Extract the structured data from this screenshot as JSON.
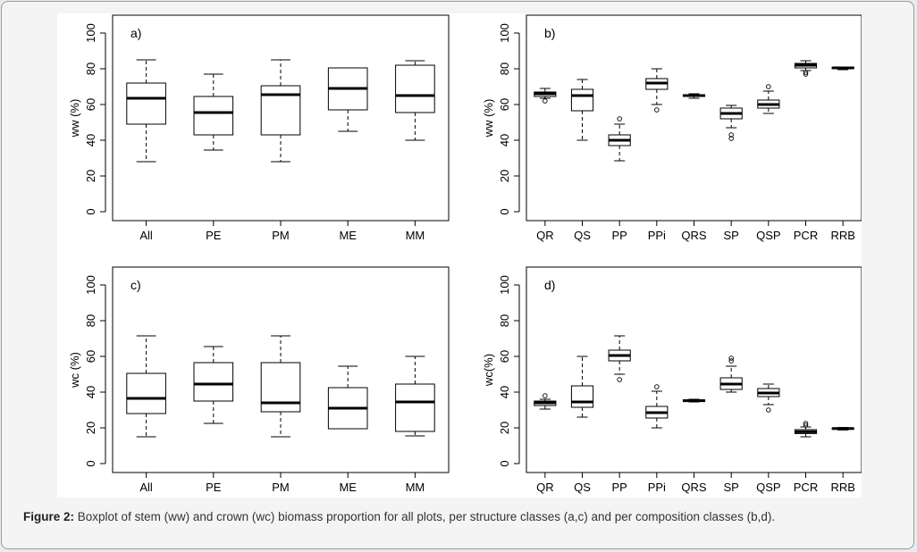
{
  "caption": {
    "label": "Figure 2:",
    "text": "Boxplot of stem (ww) and crown (wc) biomass proportion for all plots, per structure classes (a,c) and per composition classes (b,d)."
  },
  "chart_data": [
    {
      "panel": "a)",
      "type": "boxplot",
      "ylabel": "ww (%)",
      "ylim": [
        0,
        100
      ],
      "yticks": [
        "0",
        "20",
        "40",
        "60",
        "80",
        "100"
      ],
      "categories": [
        "All",
        "PE",
        "PM",
        "ME",
        "MM"
      ],
      "boxes": [
        {
          "min": 28,
          "q1": 49,
          "median": 63.5,
          "q3": 72,
          "max": 85,
          "outliers": []
        },
        {
          "min": 34.5,
          "q1": 43,
          "median": 55.5,
          "q3": 64.5,
          "max": 77,
          "outliers": []
        },
        {
          "min": 28,
          "q1": 43,
          "median": 65.5,
          "q3": 70.5,
          "max": 85,
          "outliers": []
        },
        {
          "min": 45,
          "q1": 57,
          "median": 69,
          "q3": 80.5,
          "max": 80.5,
          "outliers": []
        },
        {
          "min": 40,
          "q1": 55.5,
          "median": 65,
          "q3": 82,
          "max": 84.5,
          "outliers": []
        }
      ]
    },
    {
      "panel": "b)",
      "type": "boxplot",
      "ylabel": "ww (%)",
      "ylim": [
        0,
        100
      ],
      "yticks": [
        "0",
        "20",
        "40",
        "60",
        "80",
        "100"
      ],
      "categories": [
        "QR",
        "QS",
        "PP",
        "PPi",
        "QRS",
        "SP",
        "QSP",
        "PCR",
        "RRB"
      ],
      "boxes": [
        {
          "min": 63.5,
          "q1": 64.5,
          "median": 66,
          "q3": 67,
          "max": 69,
          "outliers": [
            62
          ]
        },
        {
          "min": 40,
          "q1": 56.5,
          "median": 65,
          "q3": 68.5,
          "max": 74,
          "outliers": []
        },
        {
          "min": 28.5,
          "q1": 37,
          "median": 40,
          "q3": 43,
          "max": 49,
          "outliers": [
            52
          ]
        },
        {
          "min": 60,
          "q1": 68.5,
          "median": 72,
          "q3": 74.5,
          "max": 80,
          "outliers": [
            57
          ]
        },
        {
          "min": 63.5,
          "q1": 64.5,
          "median": 65,
          "q3": 65.5,
          "max": 66,
          "outliers": []
        },
        {
          "min": 47,
          "q1": 52,
          "median": 55,
          "q3": 58,
          "max": 59.5,
          "outliers": [
            43,
            41
          ]
        },
        {
          "min": 55,
          "q1": 58,
          "median": 60,
          "q3": 62.5,
          "max": 67.5,
          "outliers": [
            70
          ]
        },
        {
          "min": 79,
          "q1": 80.5,
          "median": 82,
          "q3": 83,
          "max": 84.5,
          "outliers": [
            78,
            77
          ]
        },
        {
          "min": 79.5,
          "q1": 80,
          "median": 80.5,
          "q3": 81,
          "max": 81,
          "outliers": []
        }
      ]
    },
    {
      "panel": "c)",
      "type": "boxplot",
      "ylabel": "wc (%)",
      "ylim": [
        0,
        100
      ],
      "yticks": [
        "0",
        "20",
        "40",
        "60",
        "80",
        "100"
      ],
      "categories": [
        "All",
        "PE",
        "PM",
        "ME",
        "MM"
      ],
      "boxes": [
        {
          "min": 15,
          "q1": 28,
          "median": 36.5,
          "q3": 50.5,
          "max": 71.5,
          "outliers": []
        },
        {
          "min": 22.5,
          "q1": 35,
          "median": 44.5,
          "q3": 56.5,
          "max": 65.5,
          "outliers": []
        },
        {
          "min": 15,
          "q1": 29,
          "median": 34,
          "q3": 56.5,
          "max": 71.5,
          "outliers": []
        },
        {
          "min": 19.5,
          "q1": 19.5,
          "median": 31,
          "q3": 42.5,
          "max": 54.5,
          "outliers": []
        },
        {
          "min": 15.5,
          "q1": 18,
          "median": 34.5,
          "q3": 44.5,
          "max": 60,
          "outliers": []
        }
      ]
    },
    {
      "panel": "d)",
      "type": "boxplot",
      "ylabel": "wc(%)",
      "ylim": [
        0,
        100
      ],
      "yticks": [
        "0",
        "20",
        "40",
        "60",
        "80",
        "100"
      ],
      "categories": [
        "QR",
        "QS",
        "PP",
        "PPi",
        "QRS",
        "SP",
        "QSP",
        "PCR",
        "RRB"
      ],
      "boxes": [
        {
          "min": 30.5,
          "q1": 32.5,
          "median": 34,
          "q3": 35,
          "max": 36,
          "outliers": [
            38
          ]
        },
        {
          "min": 26,
          "q1": 31.5,
          "median": 34.5,
          "q3": 43.5,
          "max": 60,
          "outliers": []
        },
        {
          "min": 50,
          "q1": 57.5,
          "median": 60.5,
          "q3": 63.5,
          "max": 71.5,
          "outliers": [
            47
          ]
        },
        {
          "min": 20,
          "q1": 25.5,
          "median": 28.5,
          "q3": 32,
          "max": 40.5,
          "outliers": [
            43
          ]
        },
        {
          "min": 34.5,
          "q1": 34.8,
          "median": 35.2,
          "q3": 35.7,
          "max": 36,
          "outliers": []
        },
        {
          "min": 40,
          "q1": 41.5,
          "median": 44.5,
          "q3": 48,
          "max": 54.5,
          "outliers": [
            57.5,
            59
          ]
        },
        {
          "min": 33,
          "q1": 37.5,
          "median": 39.5,
          "q3": 42,
          "max": 44.5,
          "outliers": [
            30
          ]
        },
        {
          "min": 15,
          "q1": 16.8,
          "median": 17.8,
          "q3": 19,
          "max": 20.5,
          "outliers": [
            21.5,
            22.5
          ]
        },
        {
          "min": 18.8,
          "q1": 19.2,
          "median": 19.6,
          "q3": 19.9,
          "max": 20.2,
          "outliers": []
        }
      ]
    }
  ]
}
